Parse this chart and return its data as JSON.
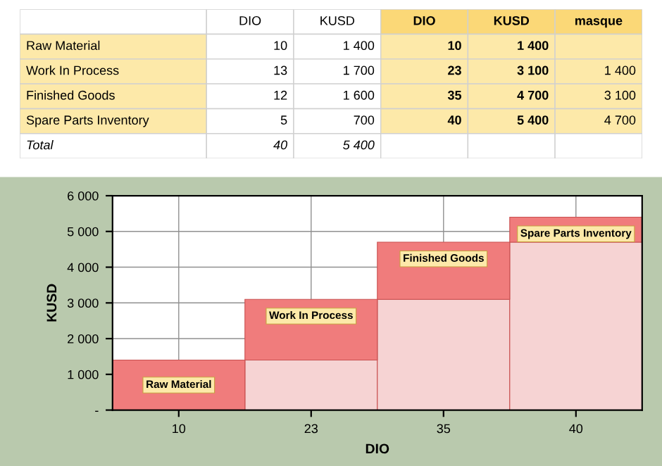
{
  "chart_data": [
    {
      "type": "other",
      "categories": [
        null,
        "DIO",
        "KUSD",
        "DIO",
        "KUSD",
        "masque"
      ],
      "y_categories": [
        "Raw Material",
        "Work In Process",
        "Finished Goods",
        "Spare Parts Inventory",
        "Total"
      ],
      "cell_labels": [
        [
          "10",
          "1 400",
          "10",
          "1 400",
          null
        ],
        [
          "13",
          "1 700",
          "23",
          "3 100",
          "1 400"
        ],
        [
          "12",
          "1 600",
          "35",
          "4 700",
          "3 100"
        ],
        [
          "5",
          "700",
          "40",
          "5 400",
          "4 700"
        ],
        [
          "40",
          "5 400",
          null,
          null,
          null
        ]
      ]
    },
    {
      "type": "bar",
      "stacked": true,
      "categories": [
        "10",
        "23",
        "35",
        "40"
      ],
      "series": [
        {
          "color": "#f6d3d3",
          "values": [
            0,
            1400,
            3100,
            4700
          ]
        },
        {
          "color": "#f07c7c",
          "values": [
            1400,
            1700,
            1600,
            700
          ]
        }
      ],
      "ylim": [
        0,
        6000
      ],
      "yticks": [
        {
          "value": 0,
          "label": "-"
        },
        {
          "value": 1000,
          "label": "1 000"
        },
        {
          "value": 2000,
          "label": "2 000"
        },
        {
          "value": 3000,
          "label": "3 000"
        },
        {
          "value": 4000,
          "label": "4 000"
        },
        {
          "value": 5000,
          "label": "5 000"
        },
        {
          "value": 6000,
          "label": "6 000"
        }
      ],
      "xlabel": "DIO",
      "ylabel": "KUSD",
      "grid": true,
      "annotations": [
        "Raw Material",
        "Work In Process",
        "Finished Goods",
        "Spare Parts Inventory"
      ]
    }
  ]
}
